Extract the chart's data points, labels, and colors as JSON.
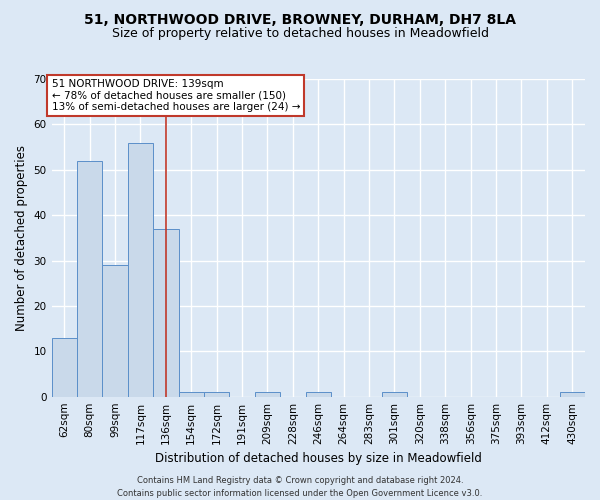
{
  "title": "51, NORTHWOOD DRIVE, BROWNEY, DURHAM, DH7 8LA",
  "subtitle": "Size of property relative to detached houses in Meadowfield",
  "xlabel": "Distribution of detached houses by size in Meadowfield",
  "ylabel": "Number of detached properties",
  "categories": [
    "62sqm",
    "80sqm",
    "99sqm",
    "117sqm",
    "136sqm",
    "154sqm",
    "172sqm",
    "191sqm",
    "209sqm",
    "228sqm",
    "246sqm",
    "264sqm",
    "283sqm",
    "301sqm",
    "320sqm",
    "338sqm",
    "356sqm",
    "375sqm",
    "393sqm",
    "412sqm",
    "430sqm"
  ],
  "values": [
    13,
    52,
    29,
    56,
    37,
    1,
    1,
    0,
    1,
    0,
    1,
    0,
    0,
    1,
    0,
    0,
    0,
    0,
    0,
    0,
    1
  ],
  "bar_color": "#c9d9ea",
  "bar_edge_color": "#5b8fc9",
  "ylim": [
    0,
    70
  ],
  "yticks": [
    0,
    10,
    20,
    30,
    40,
    50,
    60,
    70
  ],
  "vline_x": 4,
  "vline_color": "#c0392b",
  "annotation_line1": "51 NORTHWOOD DRIVE: 139sqm",
  "annotation_line2": "← 78% of detached houses are smaller (150)",
  "annotation_line3": "13% of semi-detached houses are larger (24) →",
  "annotation_box_color": "#ffffff",
  "annotation_box_edge": "#c0392b",
  "footer_line1": "Contains HM Land Registry data © Crown copyright and database right 2024.",
  "footer_line2": "Contains public sector information licensed under the Open Government Licence v3.0.",
  "bg_color": "#dce8f5",
  "plot_bg_color": "#dce8f5",
  "grid_color": "#ffffff",
  "title_fontsize": 10,
  "subtitle_fontsize": 9,
  "tick_fontsize": 7.5,
  "ylabel_fontsize": 8.5,
  "xlabel_fontsize": 8.5,
  "annotation_fontsize": 7.5,
  "footer_fontsize": 6
}
